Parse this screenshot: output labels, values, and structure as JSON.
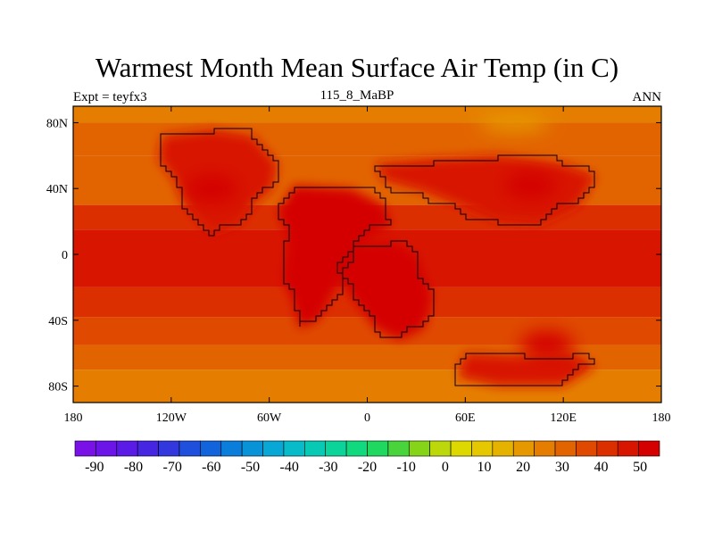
{
  "title": "Warmest Month Mean Surface Air Temp (in C)",
  "subtitle_left": "Expt = teyfx3",
  "subtitle_center": "115_8_MaBP",
  "subtitle_right": "ANN",
  "chart_data": {
    "type": "heatmap",
    "variable": "Warmest month mean surface air temperature",
    "units": "C",
    "lon_range": [
      -180,
      180
    ],
    "lat_range": [
      -90,
      90
    ],
    "x_ticks": [
      {
        "lon": -180,
        "label": "180"
      },
      {
        "lon": -120,
        "label": "120W"
      },
      {
        "lon": -60,
        "label": "60W"
      },
      {
        "lon": 0,
        "label": "0"
      },
      {
        "lon": 60,
        "label": "60E"
      },
      {
        "lon": 120,
        "label": "120E"
      },
      {
        "lon": 180,
        "label": "180"
      }
    ],
    "y_ticks": [
      {
        "lat": 80,
        "label": "80N"
      },
      {
        "lat": 40,
        "label": "40N"
      },
      {
        "lat": 0,
        "label": "0"
      },
      {
        "lat": -40,
        "label": "40S"
      },
      {
        "lat": -80,
        "label": "80S"
      }
    ],
    "latitude_bands": [
      {
        "lat_from": 90,
        "lat_to": 80,
        "value": 17
      },
      {
        "lat_from": 80,
        "lat_to": 60,
        "value": 22
      },
      {
        "lat_from": 60,
        "lat_to": 30,
        "value": 24
      },
      {
        "lat_from": 30,
        "lat_to": 15,
        "value": 30
      },
      {
        "lat_from": 15,
        "lat_to": -20,
        "value": 35
      },
      {
        "lat_from": -20,
        "lat_to": -38,
        "value": 32
      },
      {
        "lat_from": -38,
        "lat_to": -55,
        "value": 27
      },
      {
        "lat_from": -55,
        "lat_to": -70,
        "value": 23
      },
      {
        "lat_from": -70,
        "lat_to": -90,
        "value": 19
      }
    ],
    "land_regions": [
      {
        "name": "north-america",
        "value": 38,
        "polygon": [
          [
            -125,
            72
          ],
          [
            -95,
            76
          ],
          [
            -70,
            72
          ],
          [
            -55,
            55
          ],
          [
            -58,
            40
          ],
          [
            -70,
            30
          ],
          [
            -78,
            18
          ],
          [
            -95,
            12
          ],
          [
            -105,
            22
          ],
          [
            -112,
            32
          ],
          [
            -118,
            45
          ],
          [
            -128,
            58
          ]
        ]
      },
      {
        "name": "south-america",
        "value": 40,
        "polygon": [
          [
            -45,
            42
          ],
          [
            -10,
            40
          ],
          [
            10,
            30
          ],
          [
            15,
            18
          ],
          [
            -8,
            5
          ],
          [
            -15,
            -12
          ],
          [
            -30,
            -40
          ],
          [
            -42,
            -45
          ],
          [
            -45,
            -30
          ],
          [
            -52,
            -15
          ],
          [
            -48,
            10
          ],
          [
            -55,
            25
          ]
        ]
      },
      {
        "name": "africa",
        "value": 41,
        "polygon": [
          [
            -10,
            5
          ],
          [
            15,
            8
          ],
          [
            30,
            0
          ],
          [
            40,
            -25
          ],
          [
            35,
            -45
          ],
          [
            20,
            -52
          ],
          [
            5,
            -45
          ],
          [
            -10,
            -25
          ],
          [
            -18,
            -8
          ]
        ]
      },
      {
        "name": "eurasia",
        "value": 39,
        "polygon": [
          [
            5,
            55
          ],
          [
            40,
            58
          ],
          [
            80,
            60
          ],
          [
            120,
            55
          ],
          [
            140,
            48
          ],
          [
            130,
            30
          ],
          [
            105,
            18
          ],
          [
            80,
            20
          ],
          [
            55,
            30
          ],
          [
            35,
            38
          ],
          [
            10,
            45
          ]
        ]
      },
      {
        "name": "australia-antarctica",
        "value": 37,
        "polygon": [
          [
            60,
            -60
          ],
          [
            95,
            -62
          ],
          [
            125,
            -60
          ],
          [
            140,
            -68
          ],
          [
            120,
            -80
          ],
          [
            80,
            -80
          ],
          [
            55,
            -75
          ]
        ]
      }
    ],
    "hot_cores": [
      {
        "lon": -95,
        "lat": 40,
        "value": 44
      },
      {
        "lon": 5,
        "lat": -15,
        "value": 47
      },
      {
        "lon": 100,
        "lat": 42,
        "value": 46
      },
      {
        "lon": 110,
        "lat": -55,
        "value": 44
      }
    ],
    "polar_cool_spot": {
      "lon": 90,
      "lat": 80,
      "value": 12
    },
    "colorbar": {
      "min": -95,
      "max": 55,
      "step": 5,
      "labels": [
        "-90",
        "-80",
        "-70",
        "-60",
        "-50",
        "-40",
        "-30",
        "-20",
        "-10",
        "0",
        "10",
        "20",
        "30",
        "40",
        "50"
      ],
      "colors": [
        "#7a12e8",
        "#6b15e8",
        "#5a1be6",
        "#4726e2",
        "#3238de",
        "#1f4fdd",
        "#1264dc",
        "#0b7ddb",
        "#0893d9",
        "#07a8d5",
        "#07bbc8",
        "#08c9b3",
        "#0ad49a",
        "#10d97e",
        "#1ed85f",
        "#48d43a",
        "#86d418",
        "#bcd80a",
        "#dcd800",
        "#e6c800",
        "#e6b200",
        "#e69800",
        "#e57e00",
        "#e26400",
        "#df4a00",
        "#dc2f00",
        "#d81600",
        "#d40000"
      ]
    }
  }
}
